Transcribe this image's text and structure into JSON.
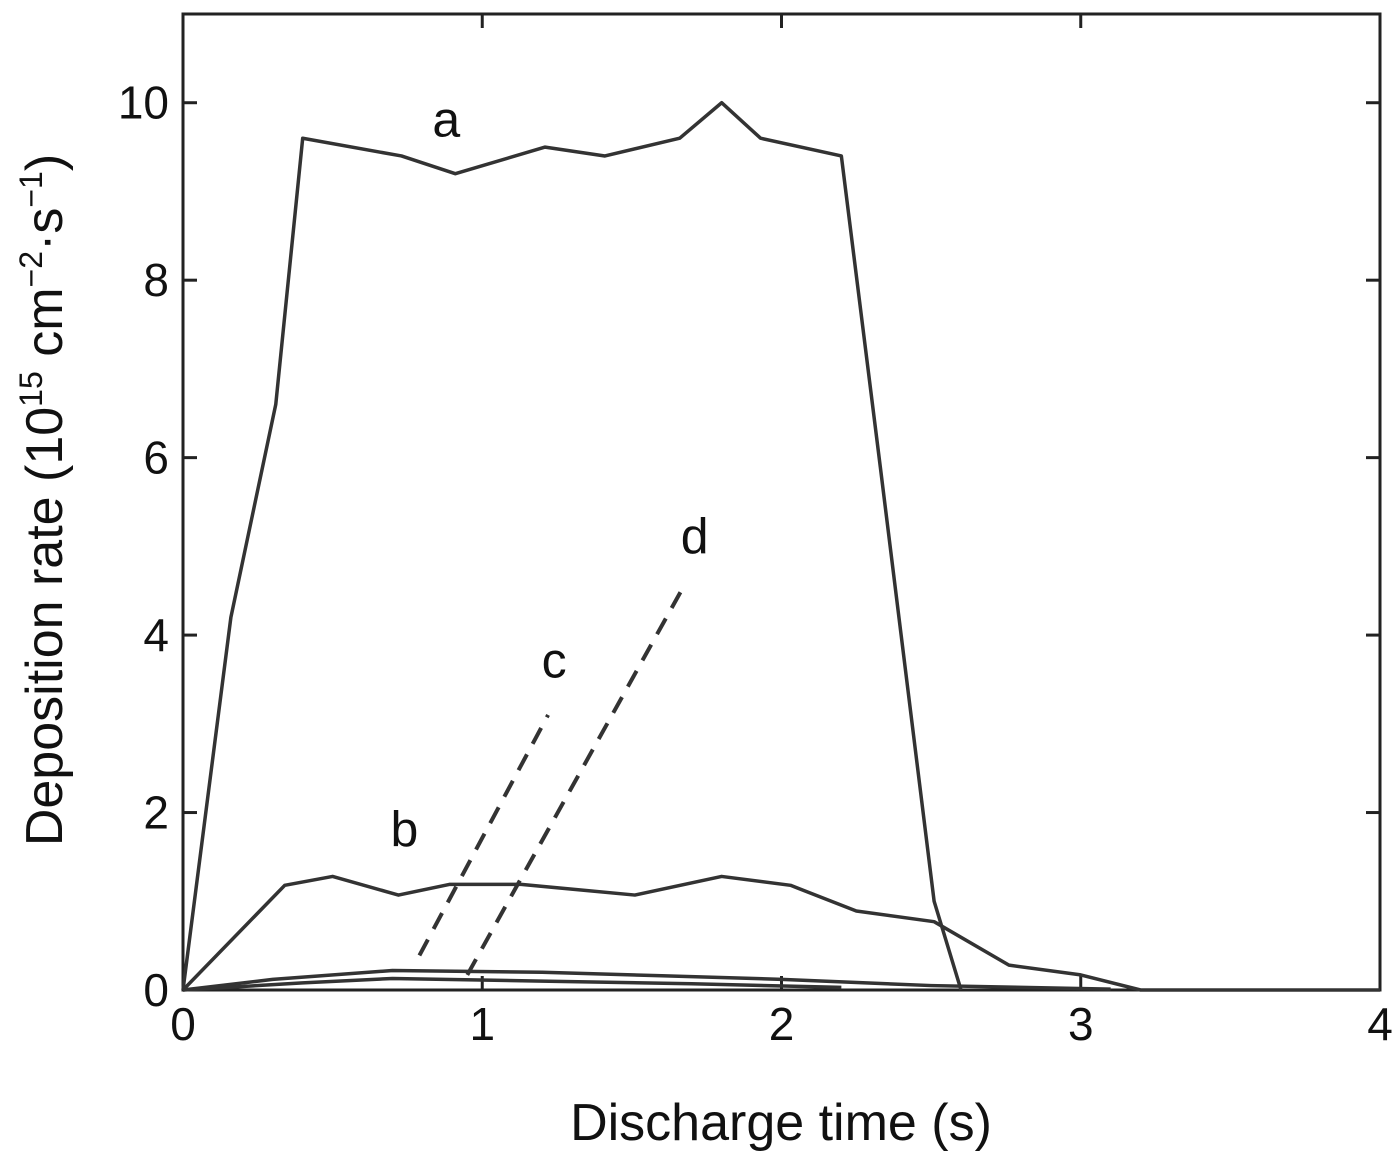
{
  "chart_data": {
    "type": "line",
    "title": "",
    "xlabel": "Discharge time (s)",
    "ylabel_parts": {
      "main": "Deposition rate (10",
      "exp1": "15",
      "mid": " cm",
      "exp2": "−2",
      "mid2": "·s",
      "exp3": "−1",
      "end": ")"
    },
    "ylabel": "Deposition rate (10^15 cm^-2·s^-1)",
    "xlim": [
      0,
      4
    ],
    "ylim": [
      0,
      11
    ],
    "xticks": [
      0,
      1,
      2,
      3,
      4
    ],
    "yticks": [
      0,
      2,
      4,
      6,
      8,
      10
    ],
    "grid": false,
    "series": [
      {
        "name": "a",
        "style": "solid",
        "label_at": [
          0.88,
          9.8
        ],
        "x": [
          0,
          0.16,
          0.31,
          0.4,
          0.73,
          0.91,
          1.21,
          1.41,
          1.66,
          1.8,
          1.93,
          2.2,
          2.33,
          2.51,
          2.6
        ],
        "y": [
          0,
          4.2,
          6.6,
          9.6,
          9.4,
          9.2,
          9.5,
          9.4,
          9.6,
          10.0,
          9.6,
          9.4,
          5.9,
          1.0,
          0
        ]
      },
      {
        "name": "b",
        "style": "solid",
        "label_at": [
          0.74,
          1.8
        ],
        "x": [
          0,
          0.34,
          0.5,
          0.72,
          0.89,
          1.13,
          1.51,
          1.8,
          2.03,
          2.25,
          2.51,
          2.76,
          3.0,
          3.2,
          4.0
        ],
        "y": [
          0,
          1.18,
          1.28,
          1.07,
          1.19,
          1.19,
          1.07,
          1.28,
          1.18,
          0.89,
          0.77,
          0.28,
          0.17,
          0,
          0
        ]
      },
      {
        "name": "c",
        "style": "dashed",
        "label_at": [
          1.24,
          3.7
        ],
        "x": [
          0.79,
          1.22
        ],
        "y": [
          0.39,
          3.1
        ]
      },
      {
        "name": "d",
        "style": "dashed",
        "label_at": [
          1.71,
          5.1
        ],
        "x": [
          0.95,
          1.67
        ],
        "y": [
          0.17,
          4.53
        ]
      },
      {
        "name": "",
        "style": "solid",
        "x": [
          0,
          0.3,
          0.7,
          1.2,
          1.6,
          2.0,
          2.5,
          3.1
        ],
        "y": [
          0,
          0.12,
          0.22,
          0.2,
          0.16,
          0.12,
          0.05,
          0.01
        ]
      },
      {
        "name": "",
        "style": "solid",
        "x": [
          0,
          0.4,
          0.7,
          1.2,
          1.7,
          2.2
        ],
        "y": [
          0,
          0.08,
          0.13,
          0.1,
          0.07,
          0.03
        ]
      }
    ]
  }
}
